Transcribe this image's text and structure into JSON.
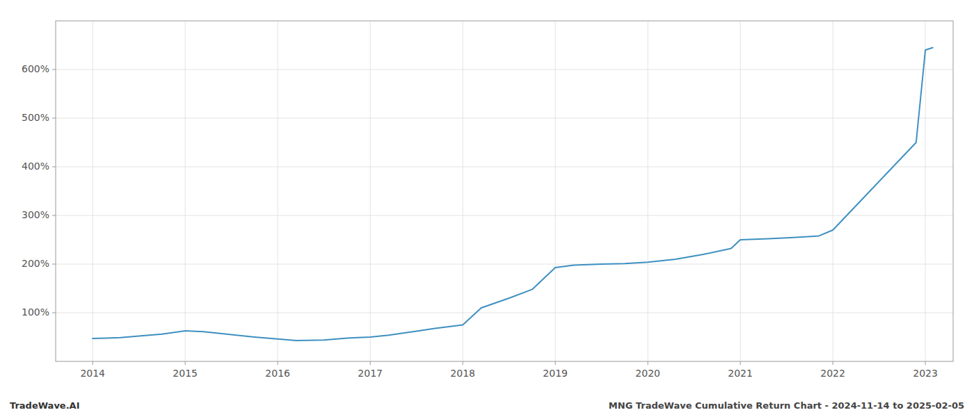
{
  "chart_data": {
    "type": "line",
    "x": [
      2014.0,
      2014.15,
      2014.3,
      2014.5,
      2014.75,
      2015.0,
      2015.2,
      2015.5,
      2015.75,
      2016.0,
      2016.2,
      2016.5,
      2016.75,
      2017.0,
      2017.2,
      2017.5,
      2017.7,
      2018.0,
      2018.2,
      2018.5,
      2018.75,
      2019.0,
      2019.2,
      2019.5,
      2019.75,
      2020.0,
      2020.3,
      2020.6,
      2020.9,
      2021.0,
      2021.3,
      2021.5,
      2021.7,
      2021.85,
      2022.0,
      2022.3,
      2022.6,
      2022.9,
      2023.0,
      2023.08
    ],
    "values": [
      47,
      48,
      49,
      52,
      56,
      63,
      61,
      55,
      50,
      46,
      43,
      44,
      48,
      50,
      54,
      62,
      68,
      75,
      110,
      130,
      148,
      193,
      198,
      200,
      201,
      204,
      210,
      220,
      232,
      250,
      252,
      254,
      256,
      258,
      270,
      330,
      390,
      450,
      640,
      645
    ],
    "color": "#3d8fc1",
    "xlim": [
      2013.6,
      2023.3
    ],
    "ylim": [
      0,
      700
    ],
    "xticks": [
      2014,
      2015,
      2016,
      2017,
      2018,
      2019,
      2020,
      2021,
      2022,
      2023
    ],
    "yticks": [
      {
        "value": 100,
        "label": "100%"
      },
      {
        "value": 200,
        "label": "200%"
      },
      {
        "value": 300,
        "label": "300%"
      },
      {
        "value": 400,
        "label": "400%"
      },
      {
        "value": 500,
        "label": "500%"
      },
      {
        "value": 600,
        "label": "600%"
      }
    ],
    "grid": true,
    "annotations": [
      "TradeWave.AI",
      "MNG TradeWave Cumulative Return Chart - 2024-11-14 to 2025-02-05"
    ]
  }
}
